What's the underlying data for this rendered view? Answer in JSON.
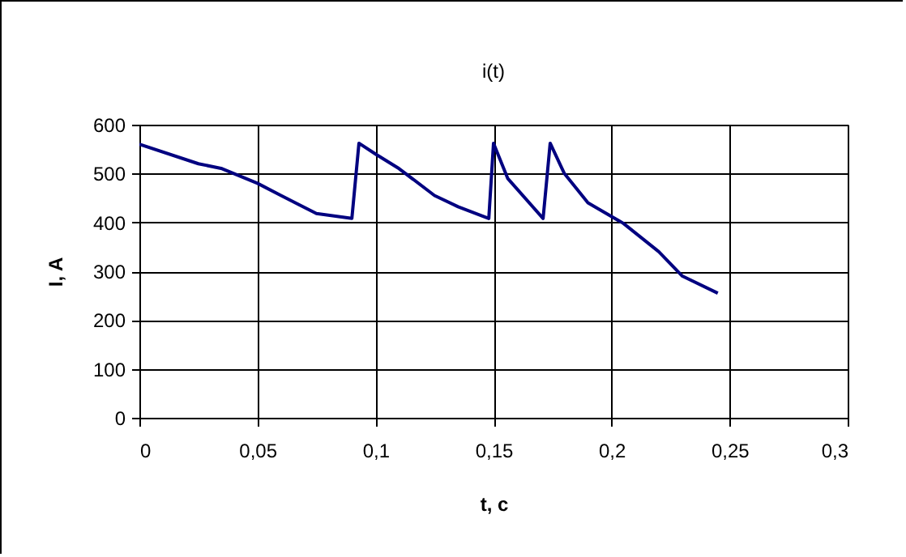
{
  "chart_data": {
    "type": "line",
    "title": "i(t)",
    "xlabel": "t, c",
    "ylabel": "I, A",
    "x": [
      0,
      0.025,
      0.035,
      0.05,
      0.06,
      0.075,
      0.09,
      0.093,
      0.1,
      0.11,
      0.125,
      0.135,
      0.148,
      0.15,
      0.156,
      0.171,
      0.174,
      0.18,
      0.19,
      0.205,
      0.22,
      0.23,
      0.245
    ],
    "series": [
      {
        "color": "#000080",
        "values": [
          560,
          520,
          510,
          480,
          455,
          418,
          408,
          562,
          540,
          510,
          455,
          432,
          408,
          562,
          490,
          408,
          562,
          500,
          440,
          398,
          340,
          290,
          255
        ]
      }
    ],
    "xlim": [
      0,
      0.3
    ],
    "ylim": [
      0,
      600
    ],
    "xticks": [
      0,
      {
        "value": 0.05,
        "label": "0,05"
      },
      {
        "value": 0.1,
        "label": "0,1"
      },
      {
        "value": 0.15,
        "label": "0,15"
      },
      {
        "value": 0.2,
        "label": "0,2"
      },
      {
        "value": 0.25,
        "label": "0,25"
      },
      {
        "value": 0.3,
        "label": "0,3"
      }
    ],
    "yticks": [
      0,
      100,
      200,
      300,
      400,
      500,
      600
    ],
    "grid": true,
    "line_style": "solid",
    "marker": "none"
  }
}
